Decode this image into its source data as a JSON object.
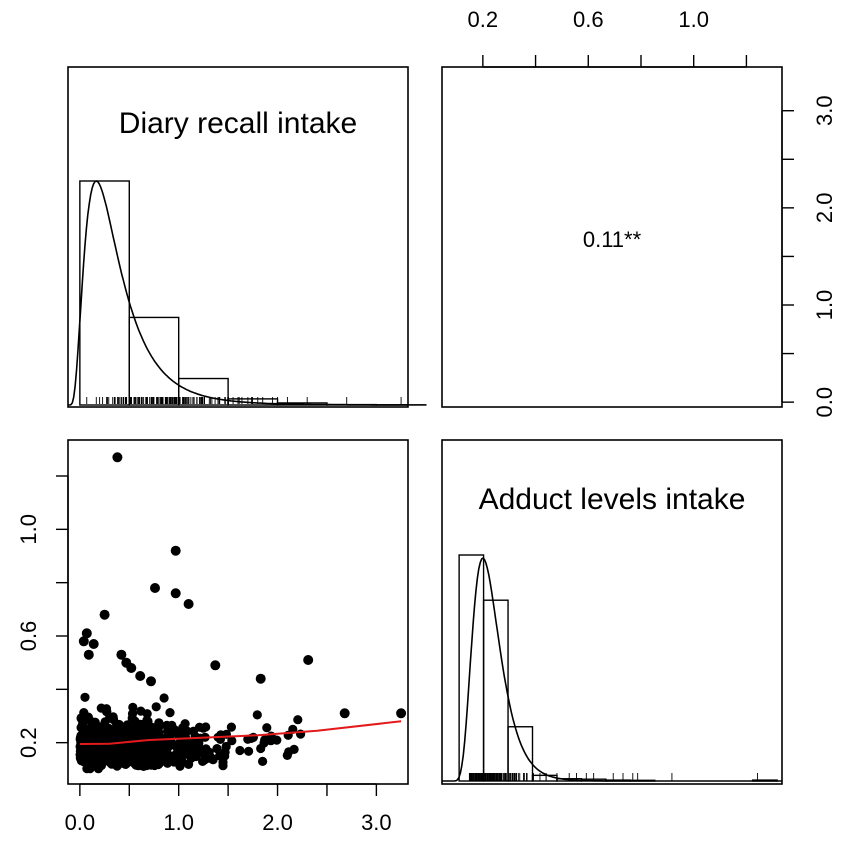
{
  "chart_data": {
    "type": "scatter-matrix",
    "variables": [
      "Diary recall intake",
      "Adduct levels intake"
    ],
    "correlation_text": "0.11**",
    "axes": {
      "diary": {
        "range": [
          -0.12,
          3.32
        ],
        "ticks": [
          0.0,
          1.0,
          2.0,
          3.0
        ],
        "tick_labels": [
          "0.0",
          "1.0",
          "2.0",
          "3.0"
        ],
        "minor_ticks": [
          0.5,
          1.5,
          2.5
        ]
      },
      "adduct": {
        "range": [
          0.045,
          1.335
        ],
        "ticks": [
          0.2,
          0.6,
          1.0
        ],
        "tick_labels": [
          "0.2",
          "0.6",
          "1.0"
        ],
        "minor_ticks": [
          0.4,
          0.8,
          1.2
        ]
      },
      "density_diary": {
        "range": [
          -0.05,
          3.45
        ],
        "ticks": [
          0.0,
          1.0,
          2.0,
          3.0
        ],
        "tick_labels": [
          "0.0",
          "1.0",
          "2.0",
          "3.0"
        ],
        "minor_ticks": [
          0.5,
          1.5,
          2.5
        ]
      }
    },
    "hist_diary": {
      "breaks": [
        0,
        0.5,
        1.0,
        1.5,
        2.0,
        2.5,
        3.0,
        3.5
      ],
      "density": [
        2.2,
        0.86,
        0.26,
        0.06,
        0.02,
        0.004,
        0.002
      ]
    },
    "hist_adduct": {
      "breaks": [
        0.05,
        0.15,
        0.25,
        0.35,
        0.45,
        0.55,
        0.65,
        0.75,
        0.85,
        0.95,
        1.05,
        1.15,
        1.25,
        1.35
      ],
      "relative_height": [
        1.0,
        0.8,
        0.24,
        0.025,
        0.01,
        0.008,
        0.004,
        0.003,
        0.002,
        0.001,
        0.001,
        0.0005,
        0.004
      ]
    },
    "smooth_line": {
      "color": "#e31a1c",
      "x": [
        0.0,
        0.3,
        0.7,
        1.2,
        1.8,
        2.4,
        3.25
      ],
      "y": [
        0.195,
        0.196,
        0.21,
        0.218,
        0.228,
        0.245,
        0.28
      ]
    },
    "outliers": {
      "x": [
        0.38,
        0.97,
        0.97,
        0.76,
        1.1,
        0.42,
        0.47,
        0.25,
        0.07,
        0.09,
        2.31,
        2.68,
        3.25,
        1.37,
        1.83,
        0.72,
        0.61,
        0.52,
        0.04,
        0.14
      ],
      "y": [
        1.27,
        0.92,
        0.76,
        0.78,
        0.72,
        0.53,
        0.5,
        0.68,
        0.61,
        0.53,
        0.51,
        0.31,
        0.31,
        0.49,
        0.44,
        0.43,
        0.45,
        0.48,
        0.58,
        0.57
      ]
    },
    "cloud": {
      "n": 720,
      "x_distribution": "right-skewed, mostly 0.0-1.3, sparse to 2.3",
      "y_distribution": "mostly 0.08-0.40"
    }
  }
}
